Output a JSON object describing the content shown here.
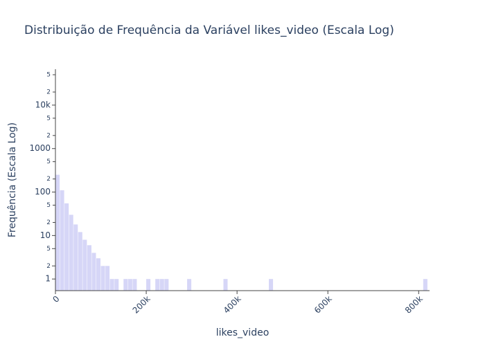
{
  "chart_data": {
    "type": "histogram",
    "title": "Distribuição de Frequência da Variável likes_video (Escala Log)",
    "x_label": "likes_video",
    "y_label": "Frequência (Escala Log)",
    "color": "#d6d6f7",
    "y_log": true,
    "bins": [
      0,
      10000,
      20000,
      30000,
      40000,
      50000,
      60000,
      70000,
      80000,
      90000,
      100000,
      110000,
      120000,
      130000,
      140000,
      150000,
      160000,
      170000,
      180000,
      190000,
      200000,
      210000,
      220000,
      230000,
      240000,
      250000,
      260000,
      270000,
      280000,
      290000,
      300000,
      310000,
      320000,
      330000,
      340000,
      350000,
      360000,
      370000,
      380000,
      390000,
      400000,
      410000,
      420000,
      430000,
      440000,
      450000,
      460000,
      470000,
      480000,
      490000,
      500000,
      510000,
      520000,
      530000,
      540000,
      550000,
      560000,
      570000,
      580000,
      590000,
      600000,
      610000,
      620000,
      630000,
      640000,
      650000,
      660000,
      670000,
      680000,
      690000,
      700000,
      710000,
      720000,
      730000,
      740000,
      750000,
      760000,
      770000,
      780000,
      790000,
      800000,
      810000,
      820000
    ],
    "values": [
      250,
      110,
      55,
      30,
      18,
      12,
      8,
      6,
      4,
      3,
      2,
      2,
      1,
      1,
      0,
      1,
      1,
      1,
      0,
      0,
      1,
      0,
      1,
      1,
      1,
      0,
      0,
      0,
      0,
      1,
      0,
      0,
      0,
      0,
      0,
      0,
      0,
      1,
      0,
      0,
      0,
      0,
      0,
      0,
      0,
      0,
      0,
      1,
      0,
      0,
      0,
      0,
      0,
      0,
      0,
      0,
      0,
      0,
      0,
      0,
      0,
      0,
      0,
      0,
      0,
      0,
      0,
      0,
      0,
      0,
      0,
      0,
      0,
      0,
      0,
      0,
      0,
      0,
      0,
      0,
      0,
      1
    ],
    "xlim": [
      0,
      824000
    ],
    "xticks": [
      {
        "value": 0,
        "label": "0"
      },
      {
        "value": 200000,
        "label": "200k"
      },
      {
        "value": 400000,
        "label": "400k"
      },
      {
        "value": 600000,
        "label": "600k"
      },
      {
        "value": 800000,
        "label": "800k"
      }
    ],
    "ylim": [
      0.54,
      67000
    ],
    "yticks": [
      1,
      2,
      5,
      10,
      {
        "value": 20,
        "label": "2"
      },
      {
        "value": 50,
        "label": "5"
      },
      100,
      {
        "value": 200,
        "label": "2"
      },
      {
        "value": 500,
        "label": "5"
      },
      1000,
      {
        "value": 2000,
        "label": "2"
      },
      {
        "value": 5000,
        "label": "5"
      },
      {
        "value": 10000,
        "label": "10k"
      },
      {
        "value": 20000,
        "label": "2"
      },
      {
        "value": 50000,
        "label": "5"
      }
    ]
  }
}
